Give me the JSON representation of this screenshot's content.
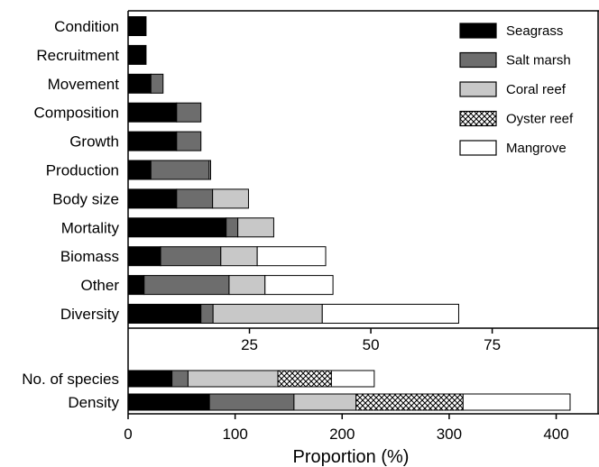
{
  "chart_data": [
    {
      "type": "bar",
      "orientation": "horizontal",
      "stacked": true,
      "categories": [
        "Condition",
        "Recruitment",
        "Movement",
        "Composition",
        "Growth",
        "Production",
        "Body size",
        "Mortality",
        "Biomass",
        "Other",
        "Diversity"
      ],
      "series": [
        {
          "name": "Seagrass",
          "fill": "#000000",
          "values": [
            3.7,
            3.7,
            4.7,
            10.0,
            10.0,
            4.7,
            10.0,
            20.2,
            6.7,
            3.3,
            15.0
          ]
        },
        {
          "name": "Salt marsh",
          "fill": "#6d6d6d",
          "values": [
            0,
            0,
            2.5,
            5.0,
            5.0,
            12.0,
            7.4,
            2.4,
            12.4,
            17.5,
            2.5
          ]
        },
        {
          "name": "Coral reef",
          "fill": "#c8c8c8",
          "values": [
            0,
            0,
            0,
            0,
            0,
            0.3,
            7.4,
            7.4,
            7.5,
            7.4,
            22.5
          ]
        },
        {
          "name": "Oyster reef",
          "fill": "hatch",
          "values": [
            0,
            0,
            0,
            0,
            0,
            0,
            0,
            0,
            0,
            0,
            0
          ]
        },
        {
          "name": "Mangrove",
          "fill": "#ffffff",
          "values": [
            0,
            0,
            0,
            0,
            0,
            0,
            0,
            0,
            14.1,
            14.0,
            28.1
          ]
        }
      ],
      "xlim": [
        0,
        97
      ],
      "xticks": [
        25,
        50,
        75
      ],
      "xticklabels": [
        "25",
        "50",
        "75"
      ]
    },
    {
      "type": "bar",
      "orientation": "horizontal",
      "stacked": true,
      "categories": [
        "No. of species",
        "Density"
      ],
      "series": [
        {
          "name": "Seagrass",
          "values": [
            41,
            76
          ]
        },
        {
          "name": "Salt marsh",
          "values": [
            15,
            79
          ]
        },
        {
          "name": "Coral reef",
          "values": [
            84,
            58
          ]
        },
        {
          "name": "Oyster reef",
          "values": [
            50,
            100
          ]
        },
        {
          "name": "Mangrove",
          "values": [
            40,
            100
          ]
        }
      ],
      "xlim": [
        0,
        440
      ],
      "xticks": [
        0,
        100,
        200,
        300,
        400
      ],
      "xticklabels": [
        "0",
        "100",
        "200",
        "300",
        "400"
      ],
      "xlabel": "Proportion (%)"
    }
  ],
  "legend": {
    "position": "top-right",
    "entries": [
      "Seagrass",
      "Salt marsh",
      "Coral reef",
      "Oyster reef",
      "Mangrove"
    ]
  }
}
